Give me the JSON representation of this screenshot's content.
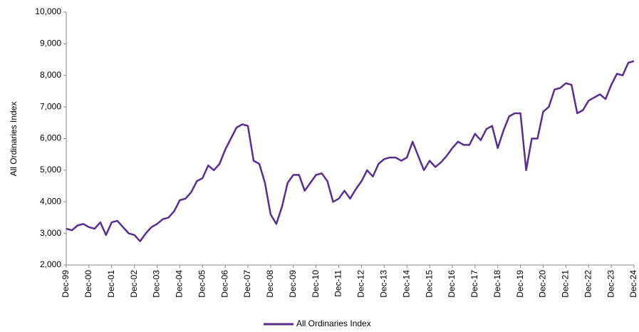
{
  "chart_data": {
    "type": "line",
    "y_label": "All Ordinaries Index",
    "categories": [
      "Dec-99",
      null,
      null,
      null,
      "Dec-00",
      null,
      null,
      null,
      "Dec-01",
      null,
      null,
      null,
      "Dec-02",
      null,
      null,
      null,
      "Dec-03",
      null,
      null,
      null,
      "Dec-04",
      null,
      null,
      null,
      "Dec-05",
      null,
      null,
      null,
      "Dec-06",
      null,
      null,
      null,
      "Dec-07",
      null,
      null,
      null,
      "Dec-08",
      null,
      null,
      null,
      "Dec-09",
      null,
      null,
      null,
      "Dec-10",
      null,
      null,
      null,
      "Dec-11",
      null,
      null,
      null,
      "Dec-12",
      null,
      null,
      null,
      "Dec-13",
      null,
      null,
      null,
      "Dec-14",
      null,
      null,
      null,
      "Dec-15",
      null,
      null,
      null,
      "Dec-16",
      null,
      null,
      null,
      "Dec-17",
      null,
      null,
      null,
      "Dec-18",
      null,
      null,
      null,
      "Dec-19",
      null,
      null,
      null,
      "Dec-20",
      null,
      null,
      null,
      "Dec-21",
      null,
      null,
      null,
      "Dec-22",
      null,
      null,
      null,
      "Dec-23",
      null,
      null,
      null,
      "Dec-24"
    ],
    "series": [
      {
        "name": "All Ordinaries Index",
        "color": "#5b2d8e",
        "values": [
          3150,
          3100,
          3250,
          3300,
          3200,
          3150,
          3350,
          2950,
          3350,
          3400,
          3200,
          3000,
          2950,
          2750,
          3000,
          3200,
          3300,
          3450,
          3500,
          3700,
          4050,
          4100,
          4300,
          4650,
          4750,
          5150,
          5000,
          5200,
          5650,
          6000,
          6350,
          6450,
          6400,
          5300,
          5200,
          4600,
          3600,
          3300,
          3850,
          4600,
          4850,
          4850,
          4350,
          4600,
          4850,
          4900,
          4650,
          4000,
          4100,
          4350,
          4100,
          4400,
          4650,
          5000,
          4800,
          5200,
          5350,
          5400,
          5400,
          5300,
          5400,
          5900,
          5450,
          5000,
          5300,
          5100,
          5250,
          5450,
          5700,
          5900,
          5800,
          5800,
          6150,
          5950,
          6300,
          6400,
          5700,
          6250,
          6700,
          6800,
          6800,
          5000,
          6000,
          6000,
          6850,
          7000,
          7550,
          7600,
          7750,
          7700,
          6800,
          6900,
          7200,
          7300,
          7400,
          7250,
          7700,
          8050,
          8000,
          8400,
          8450
        ]
      }
    ],
    "ylim": [
      2000,
      10000
    ],
    "yticks": [
      {
        "value": 2000,
        "label": "2,000"
      },
      {
        "value": 3000,
        "label": "3,000"
      },
      {
        "value": 4000,
        "label": "4,000"
      },
      {
        "value": 5000,
        "label": "5,000"
      },
      {
        "value": 6000,
        "label": "6,000"
      },
      {
        "value": 7000,
        "label": "7,000"
      },
      {
        "value": 8000,
        "label": "8,000"
      },
      {
        "value": 9000,
        "label": "9,000"
      },
      {
        "value": 10000,
        "label": "10,000"
      }
    ],
    "grid": false,
    "legend": "bottom"
  }
}
